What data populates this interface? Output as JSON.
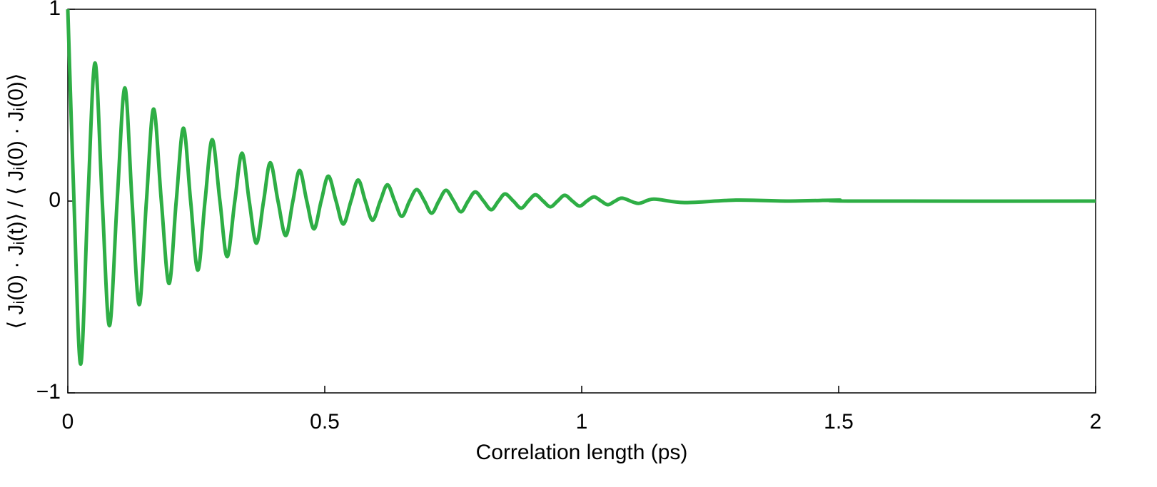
{
  "chart_data": {
    "type": "line",
    "xlabel": "Correlation length (ps)",
    "ylabel": "⟨ Jᵢ(0) · Jᵢ(t)⟩ / ⟨ Jᵢ(0) · Jᵢ(0)⟩",
    "xlim": [
      0,
      2
    ],
    "ylim": [
      -1,
      1
    ],
    "xticks": [
      0,
      0.5,
      1,
      1.5,
      2
    ],
    "yticks": [
      {
        "value": -1,
        "label": "−1"
      },
      0,
      1
    ],
    "series": [
      {
        "color": "#2eae45",
        "x": [
          0,
          0.012,
          0.025,
          0.039,
          0.053,
          0.067,
          0.081,
          0.096,
          0.111,
          0.125,
          0.139,
          0.153,
          0.167,
          0.182,
          0.197,
          0.211,
          0.225,
          0.239,
          0.253,
          0.267,
          0.281,
          0.296,
          0.31,
          0.325,
          0.339,
          0.353,
          0.367,
          0.381,
          0.394,
          0.409,
          0.424,
          0.438,
          0.451,
          0.465,
          0.479,
          0.493,
          0.507,
          0.522,
          0.536,
          0.551,
          0.565,
          0.579,
          0.593,
          0.608,
          0.622,
          0.636,
          0.65,
          0.665,
          0.679,
          0.694,
          0.708,
          0.722,
          0.736,
          0.751,
          0.765,
          0.779,
          0.793,
          0.809,
          0.824,
          0.838,
          0.851,
          0.867,
          0.882,
          0.896,
          0.91,
          0.925,
          0.939,
          0.953,
          0.967,
          0.982,
          0.996,
          1.01,
          1.024,
          1.038,
          1.051,
          1.065,
          1.08,
          1.11,
          1.14,
          1.2,
          1.3,
          1.4,
          1.5,
          1.52,
          2
        ],
        "values": [
          1,
          0,
          -0.85,
          0,
          0.72,
          0,
          -0.65,
          0,
          0.59,
          0,
          -0.54,
          0,
          0.48,
          0,
          -0.43,
          0,
          0.38,
          0,
          -0.36,
          0,
          0.32,
          0,
          -0.29,
          0,
          0.25,
          0,
          -0.22,
          0,
          0.2,
          0,
          -0.18,
          0,
          0.16,
          0,
          -0.145,
          0,
          0.13,
          0,
          -0.12,
          0,
          0.11,
          0,
          -0.1,
          0,
          0.085,
          0,
          -0.08,
          0,
          0.06,
          0,
          -0.063,
          0,
          0.056,
          0,
          -0.056,
          0,
          0.048,
          0,
          -0.045,
          0,
          0.037,
          0,
          -0.037,
          0,
          0.033,
          0,
          -0.03,
          0,
          0.03,
          0,
          -0.026,
          0,
          0.022,
          0,
          -0.019,
          0,
          0.015,
          -0.012,
          0.01,
          -0.008,
          0.005,
          0,
          0.005,
          0,
          0
        ]
      }
    ]
  }
}
